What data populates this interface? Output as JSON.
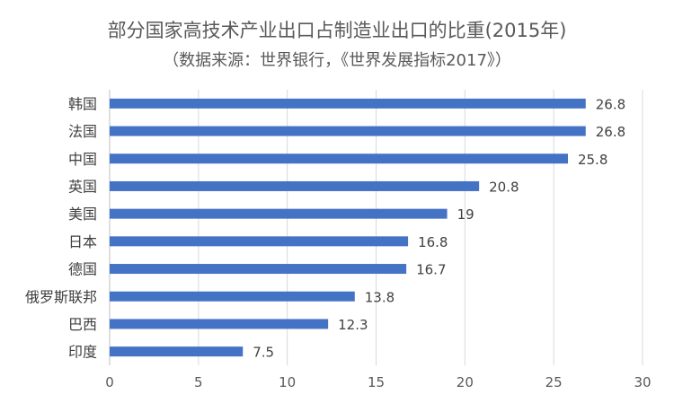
{
  "chart_data": {
    "type": "bar",
    "orientation": "horizontal",
    "title": "部分国家高技术产业出口占制造业出口的比重(2015年)",
    "subtitle": "（数据来源：世界银行，《世界发展指标2017》）",
    "categories": [
      "韩国",
      "法国",
      "中国",
      "英国",
      "美国",
      "日本",
      "德国",
      "俄罗斯联邦",
      "巴西",
      "印度"
    ],
    "values": [
      26.8,
      26.8,
      25.8,
      20.8,
      19,
      16.8,
      16.7,
      13.8,
      12.3,
      7.5
    ],
    "value_labels": [
      "26.8",
      "26.8",
      "25.8",
      "20.8",
      "19",
      "16.8",
      "16.7",
      "13.8",
      "12.3",
      "7.5"
    ],
    "xlim": [
      0,
      30
    ],
    "xticks": [
      "0",
      "5",
      "10",
      "15",
      "20",
      "25",
      "30"
    ],
    "grid": "vertical",
    "bar_color": "#4472C4",
    "legend": "none"
  }
}
